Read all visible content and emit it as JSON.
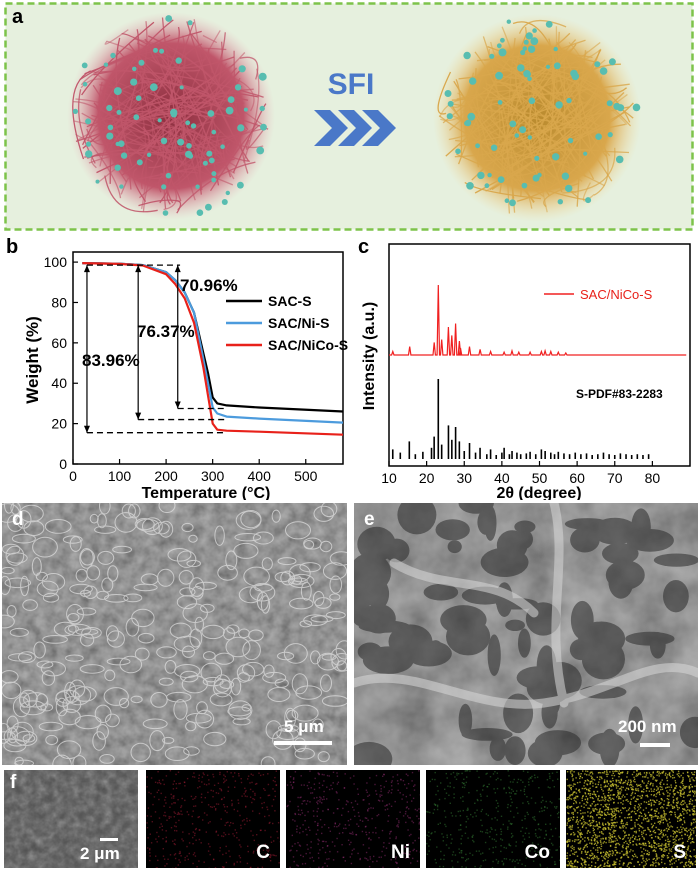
{
  "panel_a": {
    "letter": "a",
    "arrow_label": "SFI",
    "colors": {
      "frame": "#7DC34A",
      "bg": "#E6F0DE",
      "arrow": "#4A78C8",
      "sphere_left": "#C0566A",
      "sphere_right": "#D9A74C",
      "dots": "#58BDB0"
    }
  },
  "panel_b": {
    "letter": "b",
    "annotations": [
      "70.96%",
      "76.37%",
      "83.96%"
    ]
  },
  "panel_c": {
    "letter": "c",
    "sample_label": "SAC/NiCo-S",
    "ref_label": "S-PDF#83-2283"
  },
  "panel_d": {
    "letter": "d",
    "scale": "5 μm"
  },
  "panel_e": {
    "letter": "e",
    "scale": "200 nm"
  },
  "panel_f": {
    "letter": "f",
    "scale": "2 μm",
    "maps": [
      {
        "element": "C",
        "color": "#B0203A"
      },
      {
        "element": "Ni",
        "color": "#A0307A"
      },
      {
        "element": "Co",
        "color": "#3A8A3A"
      },
      {
        "element": "S",
        "color": "#C8C030"
      }
    ]
  },
  "chart_data": [
    {
      "type": "line",
      "title": "",
      "xlabel": "Temperature (°C)",
      "ylabel": "Weight (%)",
      "xlim": [
        0,
        580
      ],
      "ylim": [
        0,
        105
      ],
      "xticks": [
        0,
        100,
        200,
        300,
        400,
        500
      ],
      "yticks": [
        0,
        20,
        40,
        60,
        80,
        100
      ],
      "legend": "center-right",
      "series": [
        {
          "name": "SAC-S",
          "color": "#000000",
          "x": [
            20,
            100,
            150,
            200,
            220,
            240,
            260,
            280,
            290,
            300,
            310,
            330,
            400,
            580
          ],
          "y": [
            99.5,
            99.2,
            98.5,
            95,
            91,
            85,
            75,
            55,
            45,
            33,
            30,
            29,
            28,
            26
          ]
        },
        {
          "name": "SAC/Ni-S",
          "color": "#4C9BDD",
          "x": [
            20,
            100,
            150,
            200,
            220,
            240,
            260,
            280,
            290,
            300,
            310,
            330,
            400,
            580
          ],
          "y": [
            99.5,
            99.2,
            98.5,
            95,
            91,
            85,
            75,
            52,
            40,
            28,
            25,
            23.5,
            22.5,
            20.5
          ]
        },
        {
          "name": "SAC/NiCo-S",
          "color": "#E8211A",
          "x": [
            20,
            100,
            150,
            200,
            220,
            240,
            260,
            280,
            290,
            300,
            310,
            330,
            400,
            580
          ],
          "y": [
            99.5,
            99.1,
            98.3,
            94,
            89,
            82,
            70,
            48,
            34,
            20,
            17,
            16.5,
            16,
            14.5
          ]
        }
      ]
    },
    {
      "type": "bar",
      "title": "",
      "xlabel": "2θ (degree)",
      "ylabel": "Intensity (a.u.)",
      "xlim": [
        10,
        90
      ],
      "xticks": [
        10,
        20,
        30,
        40,
        50,
        60,
        70,
        80
      ],
      "legend": "top-right",
      "series": [
        {
          "name": "SAC/NiCo-S",
          "kind": "pattern",
          "color": "#F02020",
          "x": [
            11,
            15.5,
            22,
            23.1,
            24,
            25.8,
            26.7,
            27.7,
            28.7,
            29,
            31.4,
            34.2,
            37,
            40.6,
            42.7,
            44.5,
            47.5,
            50.5,
            51.5,
            53,
            55,
            57
          ],
          "y": [
            5,
            12,
            18,
            100,
            22,
            40,
            28,
            45,
            20,
            10,
            12,
            8,
            5,
            4,
            6,
            4,
            4,
            5,
            6,
            5,
            4,
            3
          ]
        },
        {
          "name": "S-PDF#83-2283",
          "kind": "stick",
          "color": "#000000",
          "x": [
            11,
            13,
            15.4,
            17,
            19,
            21.3,
            22,
            23.1,
            24,
            25.8,
            26.7,
            27.7,
            28.7,
            30,
            31.4,
            33,
            34.2,
            36,
            37,
            38.5,
            40,
            40.6,
            42,
            42.7,
            44,
            45,
            46.5,
            47.5,
            49,
            50.5,
            51.5,
            53,
            54,
            55,
            56.5,
            58,
            59.5,
            61,
            62.5,
            64,
            65.5,
            67,
            68.5,
            70,
            71.5,
            73,
            74.5,
            76,
            77.5,
            79
          ],
          "y": [
            12,
            8,
            22,
            6,
            9,
            14,
            28,
            100,
            18,
            42,
            24,
            40,
            22,
            10,
            20,
            8,
            14,
            6,
            12,
            5,
            8,
            14,
            6,
            10,
            8,
            6,
            7,
            9,
            6,
            12,
            10,
            8,
            6,
            9,
            7,
            6,
            8,
            6,
            7,
            5,
            6,
            8,
            6,
            5,
            7,
            6,
            5,
            6,
            5,
            6
          ]
        }
      ]
    }
  ]
}
